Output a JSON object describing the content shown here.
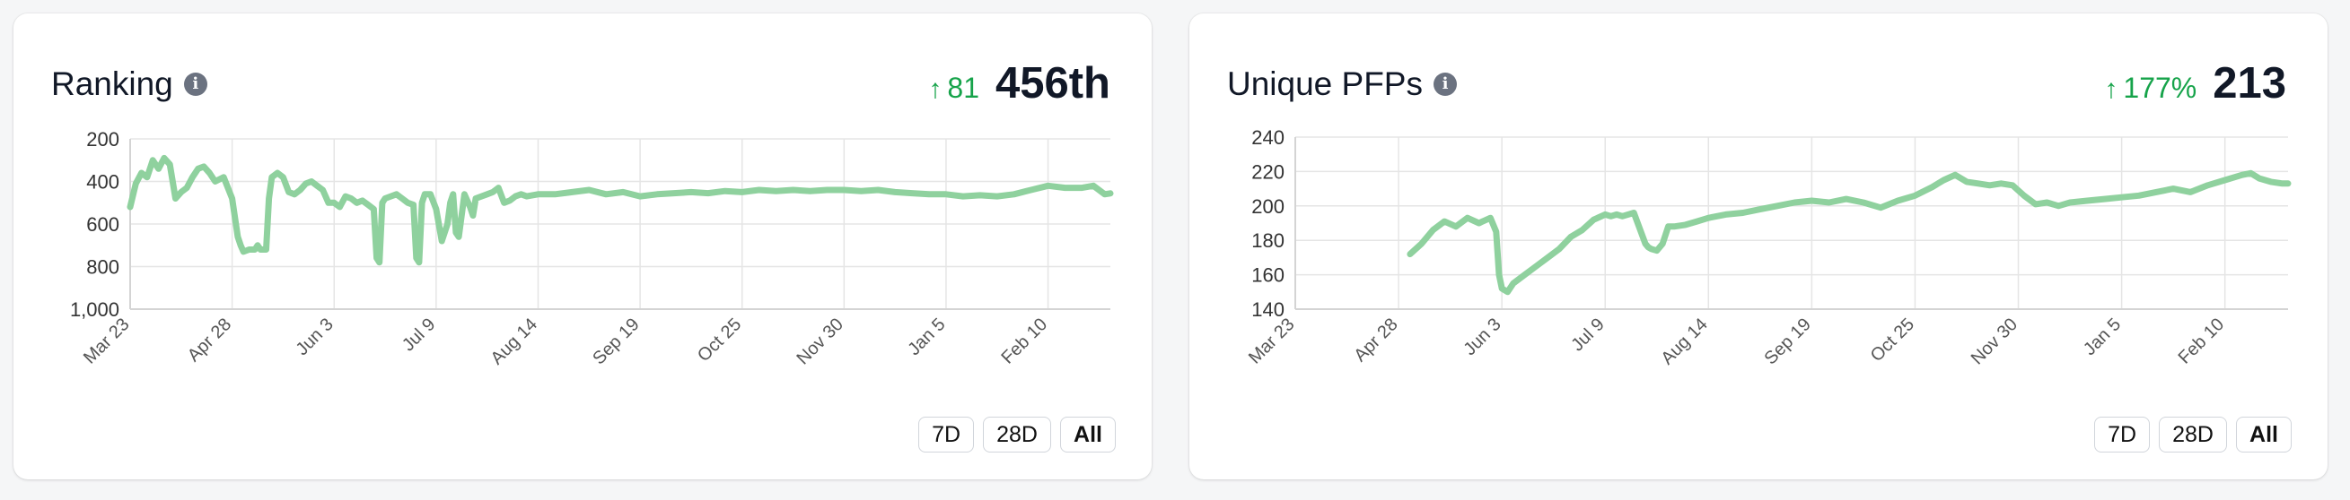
{
  "accent_color": "#8fd19e",
  "positive_color": "#16a34a",
  "cards": [
    {
      "title": "Ranking",
      "info_icon": "info-icon",
      "change_arrow": "↑",
      "change_value": "81",
      "value": "456th",
      "buttons": [
        "7D",
        "28D",
        "All"
      ],
      "active_button": "All"
    },
    {
      "title": "Unique PFPs",
      "info_icon": "info-icon",
      "change_arrow": "↑",
      "change_value": "177%",
      "value": "213",
      "buttons": [
        "7D",
        "28D",
        "All"
      ],
      "active_button": "All"
    }
  ],
  "chart_data": [
    {
      "type": "line",
      "title": "Ranking",
      "ylim": [
        200,
        1000
      ],
      "y_inverted": true,
      "yticks": [
        200,
        400,
        600,
        800,
        1000
      ],
      "ytick_labels": [
        "200",
        "400",
        "600",
        "800",
        "1,000"
      ],
      "x_tick_labels": [
        "Mar 23",
        "Apr 28",
        "Jun 3",
        "Jul 9",
        "Aug 14",
        "Sep 19",
        "Oct 25",
        "Nov 30",
        "Jan 5",
        "Feb 10"
      ],
      "x_tick_days": [
        0,
        36,
        72,
        108,
        144,
        180,
        216,
        252,
        288,
        324
      ],
      "x_range_days": [
        0,
        346
      ],
      "grid": true,
      "series": [
        {
          "x": [
            0,
            2,
            4,
            6,
            8,
            10,
            12,
            14,
            16,
            18,
            20,
            22,
            24,
            26,
            28,
            30,
            33,
            36,
            38,
            39,
            40,
            42,
            44,
            45,
            46,
            48,
            49,
            50,
            52,
            54,
            56,
            58,
            60,
            62,
            64,
            66,
            68,
            70,
            72,
            74,
            76,
            78,
            80,
            82,
            84,
            86,
            87,
            88,
            89,
            90,
            92,
            94,
            96,
            98,
            100,
            101,
            102,
            103,
            104,
            106,
            108,
            110,
            112,
            113,
            114,
            115,
            116,
            118,
            120,
            121,
            122,
            124,
            126,
            128,
            130,
            132,
            134,
            136,
            138,
            140,
            144,
            150,
            156,
            162,
            168,
            174,
            180,
            186,
            192,
            198,
            204,
            210,
            216,
            222,
            228,
            234,
            240,
            246,
            252,
            258,
            264,
            270,
            276,
            282,
            288,
            294,
            300,
            306,
            312,
            318,
            324,
            330,
            336,
            340,
            344,
            346
          ],
          "values": [
            520,
            410,
            360,
            380,
            300,
            340,
            290,
            320,
            480,
            450,
            430,
            380,
            340,
            330,
            360,
            400,
            380,
            480,
            660,
            700,
            730,
            720,
            720,
            700,
            720,
            720,
            480,
            380,
            360,
            380,
            450,
            460,
            440,
            410,
            400,
            420,
            440,
            500,
            500,
            520,
            470,
            480,
            500,
            490,
            510,
            530,
            760,
            780,
            500,
            480,
            470,
            460,
            480,
            500,
            510,
            760,
            780,
            500,
            460,
            460,
            530,
            680,
            600,
            500,
            460,
            640,
            660,
            460,
            520,
            560,
            480,
            470,
            460,
            450,
            430,
            500,
            490,
            470,
            460,
            470,
            460,
            460,
            450,
            440,
            460,
            450,
            470,
            460,
            455,
            450,
            455,
            445,
            450,
            440,
            445,
            440,
            445,
            440,
            440,
            445,
            440,
            450,
            455,
            460,
            460,
            470,
            465,
            470,
            460,
            440,
            420,
            430,
            430,
            420,
            460,
            456
          ]
        }
      ]
    },
    {
      "type": "line",
      "title": "Unique PFPs",
      "ylim": [
        140,
        240
      ],
      "yticks": [
        140,
        160,
        180,
        200,
        220,
        240
      ],
      "x_tick_labels": [
        "Mar 23",
        "Apr 28",
        "Jun 3",
        "Jul 9",
        "Aug 14",
        "Sep 19",
        "Oct 25",
        "Nov 30",
        "Jan 5",
        "Feb 10"
      ],
      "x_tick_days": [
        0,
        36,
        72,
        108,
        144,
        180,
        216,
        252,
        288,
        324
      ],
      "x_range_days": [
        0,
        346
      ],
      "grid": true,
      "series": [
        {
          "x": [
            40,
            44,
            48,
            52,
            56,
            60,
            64,
            68,
            70,
            71,
            72,
            74,
            76,
            80,
            84,
            88,
            92,
            96,
            100,
            104,
            108,
            110,
            112,
            114,
            118,
            122,
            123,
            124,
            126,
            128,
            130,
            132,
            136,
            140,
            144,
            150,
            156,
            162,
            168,
            174,
            180,
            186,
            192,
            198,
            204,
            210,
            216,
            222,
            226,
            230,
            234,
            238,
            242,
            246,
            250,
            254,
            258,
            262,
            266,
            270,
            276,
            282,
            288,
            294,
            300,
            306,
            312,
            318,
            324,
            330,
            333,
            336,
            340,
            344,
            346
          ],
          "values": [
            172,
            178,
            186,
            191,
            188,
            193,
            190,
            193,
            185,
            160,
            152,
            150,
            155,
            160,
            165,
            170,
            175,
            182,
            186,
            192,
            195,
            194,
            195,
            194,
            196,
            178,
            176,
            175,
            174,
            178,
            188,
            188,
            189,
            191,
            193,
            195,
            196,
            198,
            200,
            202,
            203,
            202,
            204,
            202,
            199,
            203,
            206,
            211,
            215,
            218,
            214,
            213,
            212,
            213,
            212,
            206,
            201,
            202,
            200,
            202,
            203,
            204,
            205,
            206,
            208,
            210,
            208,
            212,
            215,
            218,
            219,
            216,
            214,
            213,
            213
          ]
        }
      ]
    }
  ]
}
